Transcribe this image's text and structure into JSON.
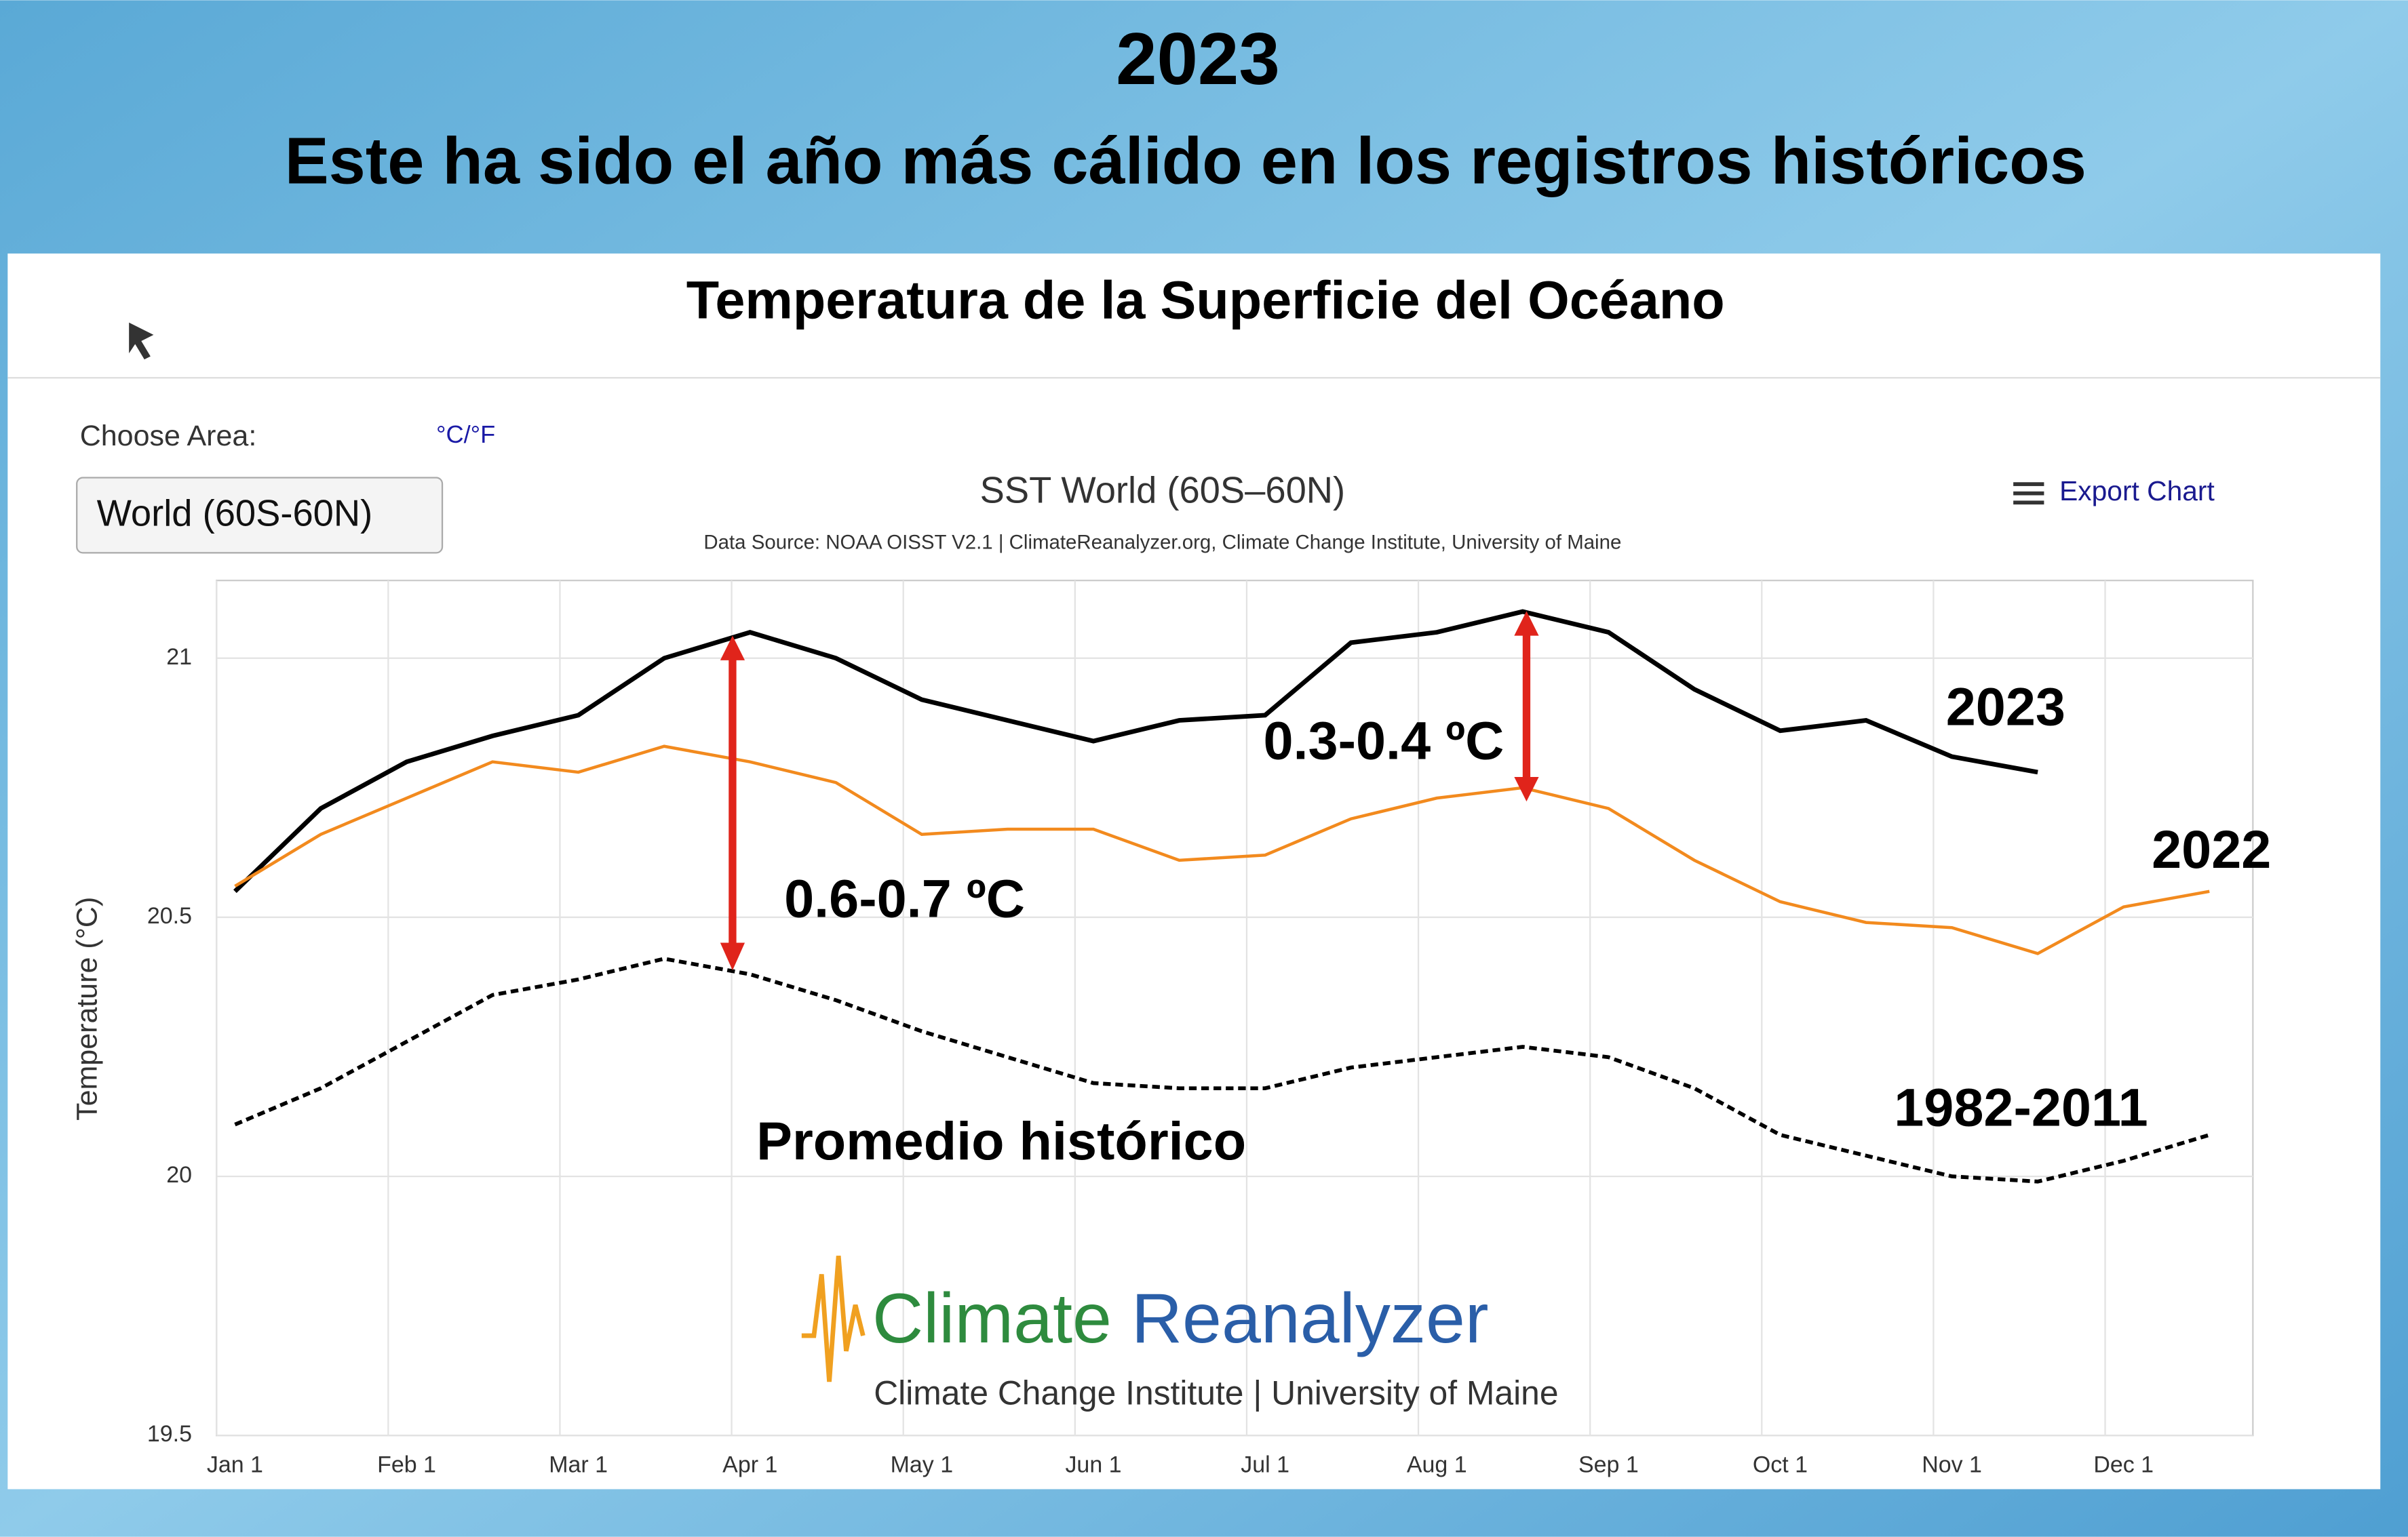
{
  "page": {
    "year": "2023",
    "headline": "Este ha sido el año más cálido en los registros históricos",
    "panel_title": "Temperatura de la Superficie del Océano",
    "choose_area": "Choose Area:",
    "units_toggle": "°C/°F",
    "area_select": "World (60S-60N)",
    "export": "Export Chart",
    "logo_name": "Climate Reanalyzer",
    "logo_sub": "Climate Change Institute | University of Maine"
  },
  "chart_data": {
    "type": "line",
    "title": "SST World (60S–60N)",
    "subtitle": "Data Source: NOAA OISST V2.1 | ClimateReanalyzer.org, Climate Change Institute, University of Maine",
    "y_label": "Temperature (°C)",
    "categories": [
      "Jan 1",
      null,
      "Feb 1",
      null,
      "Mar 1",
      null,
      "Apr 1",
      null,
      "May 1",
      null,
      "Jun 1",
      null,
      "Jul 1",
      null,
      "Aug 1",
      null,
      "Sep 1",
      null,
      "Oct 1",
      null,
      "Nov 1",
      null,
      "Dec 1",
      null
    ],
    "ylim": [
      19.5,
      21.15
    ],
    "yticks": [
      19.5,
      20,
      20.5,
      21
    ],
    "grid": true,
    "series": [
      {
        "name": "2023",
        "color": "#000000",
        "dashed": false,
        "values": [
          20.55,
          20.71,
          20.8,
          20.85,
          20.89,
          21.0,
          21.05,
          21.0,
          20.92,
          20.88,
          20.84,
          20.88,
          20.89,
          21.03,
          21.05,
          21.09,
          21.05,
          20.94,
          20.86,
          20.88,
          20.81,
          20.78,
          null,
          null
        ]
      },
      {
        "name": "2022",
        "color": "#f28a1e",
        "dashed": false,
        "values": [
          20.56,
          20.66,
          20.73,
          20.8,
          20.78,
          20.83,
          20.8,
          20.76,
          20.66,
          20.67,
          20.67,
          20.61,
          20.62,
          20.69,
          20.73,
          20.75,
          20.71,
          20.61,
          20.53,
          20.49,
          20.48,
          20.43,
          20.52,
          20.55
        ]
      },
      {
        "name": "1982-2011",
        "color": "#000000",
        "dashed": true,
        "values": [
          20.1,
          20.17,
          20.26,
          20.35,
          20.38,
          20.42,
          20.39,
          20.34,
          20.28,
          20.23,
          20.18,
          20.17,
          20.17,
          20.21,
          20.23,
          20.25,
          20.23,
          20.17,
          20.08,
          20.04,
          20.0,
          19.99,
          20.03,
          20.08
        ]
      }
    ],
    "annotations": [
      "Promedio histórico",
      "0.6-0.7 ºC",
      "0.3-0.4 ºC"
    ]
  }
}
